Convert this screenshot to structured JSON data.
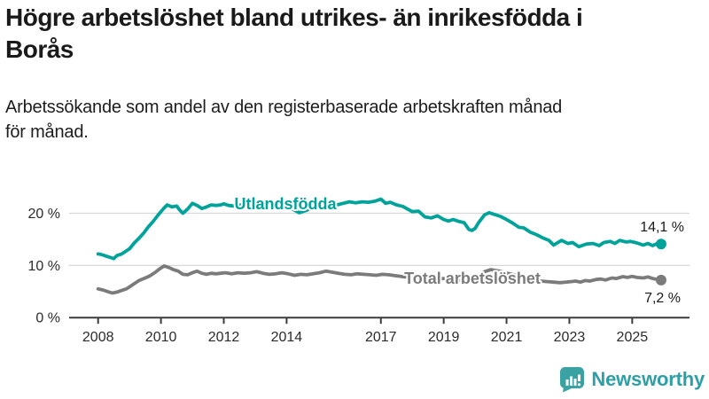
{
  "header": {
    "title": "Högre arbetslöshet bland utrikes- än inrikesfödda i Borås",
    "subtitle": "Arbetssökande som andel av den registerbaserade arbetskraften månad för månad."
  },
  "footer": {
    "brand": "Newsworthy"
  },
  "colors": {
    "accent_teal": "#00a39a",
    "series_gray": "#7b7b7b",
    "logo_teal": "#3aa2a2",
    "grid": "#d8d8d8",
    "axis": "#3c3c3c",
    "text_dark": "#1a1a1a"
  },
  "chart_data": {
    "type": "line",
    "title": "Högre arbetslöshet bland utrikes- än inrikesfödda i Borås",
    "subtitle": "Arbetssökande som andel av den registerbaserade arbetskraften månad för månad.",
    "unit": "%",
    "grid": "horizontal",
    "legend_position": "inline-labels",
    "x_axis": {
      "range": [
        2007.25,
        2026.6
      ],
      "ticks": [
        2008,
        2010,
        2012,
        2014,
        2017,
        2019,
        2021,
        2023,
        2025
      ],
      "tick_labels": [
        "2008",
        "2010",
        "2012",
        "2014",
        "2017",
        "2019",
        "2021",
        "2023",
        "2025"
      ]
    },
    "y_axis": {
      "range": [
        0,
        25
      ],
      "ticks": [
        0,
        10,
        20
      ],
      "tick_labels": [
        "0 %",
        "10 %",
        "20 %"
      ]
    },
    "series": [
      {
        "name": "Utlandsfödda",
        "color": "#00a39a",
        "end_label": "14,1 %",
        "last_value": 14.1,
        "points": [
          [
            2008.0,
            12.2
          ],
          [
            2008.1,
            12.1
          ],
          [
            2008.25,
            11.8
          ],
          [
            2008.4,
            11.5
          ],
          [
            2008.5,
            11.3
          ],
          [
            2008.6,
            11.9
          ],
          [
            2008.75,
            12.2
          ],
          [
            2008.9,
            12.8
          ],
          [
            2009.0,
            13.2
          ],
          [
            2009.15,
            14.3
          ],
          [
            2009.3,
            15.2
          ],
          [
            2009.45,
            16.2
          ],
          [
            2009.6,
            17.4
          ],
          [
            2009.75,
            18.4
          ],
          [
            2009.9,
            19.6
          ],
          [
            2010.0,
            20.3
          ],
          [
            2010.1,
            21.0
          ],
          [
            2010.2,
            21.6
          ],
          [
            2010.35,
            21.2
          ],
          [
            2010.5,
            21.4
          ],
          [
            2010.6,
            20.6
          ],
          [
            2010.7,
            20.0
          ],
          [
            2010.85,
            20.8
          ],
          [
            2011.0,
            21.9
          ],
          [
            2011.15,
            21.5
          ],
          [
            2011.3,
            20.9
          ],
          [
            2011.45,
            21.2
          ],
          [
            2011.6,
            21.6
          ],
          [
            2011.75,
            21.5
          ],
          [
            2011.9,
            21.6
          ],
          [
            2012.0,
            21.8
          ],
          [
            2012.15,
            21.5
          ],
          [
            2012.3,
            21.4
          ],
          [
            2012.5,
            21.6
          ],
          [
            2012.7,
            21.5
          ],
          [
            2012.9,
            21.8
          ],
          [
            2013.1,
            21.6
          ],
          [
            2013.3,
            21.5
          ],
          [
            2013.5,
            21.6
          ],
          [
            2013.7,
            21.3
          ],
          [
            2013.9,
            21.4
          ],
          [
            2014.1,
            21.1
          ],
          [
            2014.25,
            20.6
          ],
          [
            2014.4,
            20.1
          ],
          [
            2014.6,
            20.5
          ],
          [
            2014.8,
            21.0
          ],
          [
            2015.0,
            21.3
          ],
          [
            2015.2,
            21.5
          ],
          [
            2015.4,
            21.7
          ],
          [
            2015.6,
            21.6
          ],
          [
            2015.8,
            21.9
          ],
          [
            2016.0,
            22.2
          ],
          [
            2016.2,
            22.0
          ],
          [
            2016.4,
            22.2
          ],
          [
            2016.6,
            22.1
          ],
          [
            2016.8,
            22.3
          ],
          [
            2017.0,
            22.7
          ],
          [
            2017.15,
            21.9
          ],
          [
            2017.3,
            22.1
          ],
          [
            2017.5,
            21.6
          ],
          [
            2017.7,
            21.3
          ],
          [
            2017.85,
            20.8
          ],
          [
            2018.0,
            20.3
          ],
          [
            2018.2,
            20.4
          ],
          [
            2018.4,
            19.3
          ],
          [
            2018.6,
            19.1
          ],
          [
            2018.8,
            19.5
          ],
          [
            2019.0,
            18.8
          ],
          [
            2019.15,
            18.5
          ],
          [
            2019.3,
            18.8
          ],
          [
            2019.5,
            18.4
          ],
          [
            2019.65,
            18.2
          ],
          [
            2019.8,
            16.9
          ],
          [
            2019.9,
            16.7
          ],
          [
            2020.0,
            17.1
          ],
          [
            2020.1,
            18.1
          ],
          [
            2020.3,
            19.7
          ],
          [
            2020.45,
            20.1
          ],
          [
            2020.6,
            19.8
          ],
          [
            2020.8,
            19.4
          ],
          [
            2021.0,
            18.8
          ],
          [
            2021.2,
            18.1
          ],
          [
            2021.4,
            17.3
          ],
          [
            2021.55,
            17.2
          ],
          [
            2021.75,
            16.4
          ],
          [
            2021.95,
            15.9
          ],
          [
            2022.15,
            15.3
          ],
          [
            2022.35,
            14.8
          ],
          [
            2022.5,
            13.9
          ],
          [
            2022.75,
            14.8
          ],
          [
            2022.95,
            14.2
          ],
          [
            2023.1,
            14.4
          ],
          [
            2023.3,
            13.6
          ],
          [
            2023.55,
            14.1
          ],
          [
            2023.75,
            14.2
          ],
          [
            2023.95,
            13.8
          ],
          [
            2024.1,
            14.4
          ],
          [
            2024.3,
            14.6
          ],
          [
            2024.45,
            14.2
          ],
          [
            2024.6,
            14.8
          ],
          [
            2024.8,
            14.5
          ],
          [
            2024.95,
            14.6
          ],
          [
            2025.15,
            14.3
          ],
          [
            2025.35,
            13.9
          ],
          [
            2025.5,
            14.2
          ],
          [
            2025.65,
            13.8
          ],
          [
            2025.8,
            14.2
          ],
          [
            2025.92,
            14.1
          ]
        ]
      },
      {
        "name": "Total arbetslöshet",
        "color": "#7b7b7b",
        "end_label": "7,2 %",
        "last_value": 7.2,
        "points": [
          [
            2008.0,
            5.5
          ],
          [
            2008.15,
            5.3
          ],
          [
            2008.3,
            5.0
          ],
          [
            2008.45,
            4.7
          ],
          [
            2008.6,
            4.9
          ],
          [
            2008.75,
            5.2
          ],
          [
            2008.9,
            5.5
          ],
          [
            2009.0,
            5.9
          ],
          [
            2009.15,
            6.5
          ],
          [
            2009.3,
            7.1
          ],
          [
            2009.5,
            7.6
          ],
          [
            2009.65,
            8.0
          ],
          [
            2009.8,
            8.6
          ],
          [
            2009.95,
            9.3
          ],
          [
            2010.1,
            9.9
          ],
          [
            2010.25,
            9.6
          ],
          [
            2010.4,
            9.2
          ],
          [
            2010.55,
            8.9
          ],
          [
            2010.7,
            8.3
          ],
          [
            2010.85,
            8.2
          ],
          [
            2011.0,
            8.6
          ],
          [
            2011.15,
            8.9
          ],
          [
            2011.3,
            8.5
          ],
          [
            2011.45,
            8.3
          ],
          [
            2011.6,
            8.5
          ],
          [
            2011.75,
            8.4
          ],
          [
            2011.9,
            8.5
          ],
          [
            2012.05,
            8.6
          ],
          [
            2012.25,
            8.4
          ],
          [
            2012.45,
            8.6
          ],
          [
            2012.65,
            8.5
          ],
          [
            2012.85,
            8.6
          ],
          [
            2013.05,
            8.8
          ],
          [
            2013.25,
            8.5
          ],
          [
            2013.45,
            8.3
          ],
          [
            2013.65,
            8.4
          ],
          [
            2013.85,
            8.6
          ],
          [
            2014.05,
            8.4
          ],
          [
            2014.25,
            8.1
          ],
          [
            2014.45,
            8.3
          ],
          [
            2014.65,
            8.2
          ],
          [
            2014.85,
            8.4
          ],
          [
            2015.05,
            8.6
          ],
          [
            2015.25,
            8.9
          ],
          [
            2015.45,
            8.7
          ],
          [
            2015.65,
            8.5
          ],
          [
            2015.85,
            8.3
          ],
          [
            2016.05,
            8.2
          ],
          [
            2016.25,
            8.4
          ],
          [
            2016.45,
            8.3
          ],
          [
            2016.65,
            8.2
          ],
          [
            2016.85,
            8.1
          ],
          [
            2017.05,
            8.3
          ],
          [
            2017.25,
            8.2
          ],
          [
            2017.5,
            8.0
          ],
          [
            2017.75,
            7.8
          ],
          [
            2018.0,
            7.9
          ],
          [
            2018.25,
            7.6
          ],
          [
            2018.5,
            7.5
          ],
          [
            2018.75,
            7.4
          ],
          [
            2019.0,
            7.5
          ],
          [
            2019.25,
            7.3
          ],
          [
            2019.5,
            7.2
          ],
          [
            2019.75,
            7.0
          ],
          [
            2019.9,
            7.1
          ],
          [
            2020.1,
            7.8
          ],
          [
            2020.3,
            8.8
          ],
          [
            2020.5,
            9.2
          ],
          [
            2020.7,
            9.0
          ],
          [
            2020.9,
            8.7
          ],
          [
            2021.1,
            8.4
          ],
          [
            2021.3,
            8.1
          ],
          [
            2021.5,
            7.8
          ],
          [
            2021.7,
            7.5
          ],
          [
            2021.9,
            7.2
          ],
          [
            2022.1,
            7.0
          ],
          [
            2022.3,
            6.9
          ],
          [
            2022.5,
            6.8
          ],
          [
            2022.7,
            6.7
          ],
          [
            2022.9,
            6.8
          ],
          [
            2023.05,
            6.9
          ],
          [
            2023.2,
            7.0
          ],
          [
            2023.35,
            6.8
          ],
          [
            2023.5,
            7.1
          ],
          [
            2023.65,
            7.0
          ],
          [
            2023.85,
            7.3
          ],
          [
            2024.0,
            7.4
          ],
          [
            2024.15,
            7.2
          ],
          [
            2024.35,
            7.6
          ],
          [
            2024.5,
            7.5
          ],
          [
            2024.7,
            7.85
          ],
          [
            2024.85,
            7.7
          ],
          [
            2025.0,
            7.9
          ],
          [
            2025.15,
            7.7
          ],
          [
            2025.35,
            7.6
          ],
          [
            2025.5,
            7.8
          ],
          [
            2025.65,
            7.5
          ],
          [
            2025.8,
            7.3
          ],
          [
            2025.92,
            7.2
          ]
        ]
      }
    ]
  }
}
